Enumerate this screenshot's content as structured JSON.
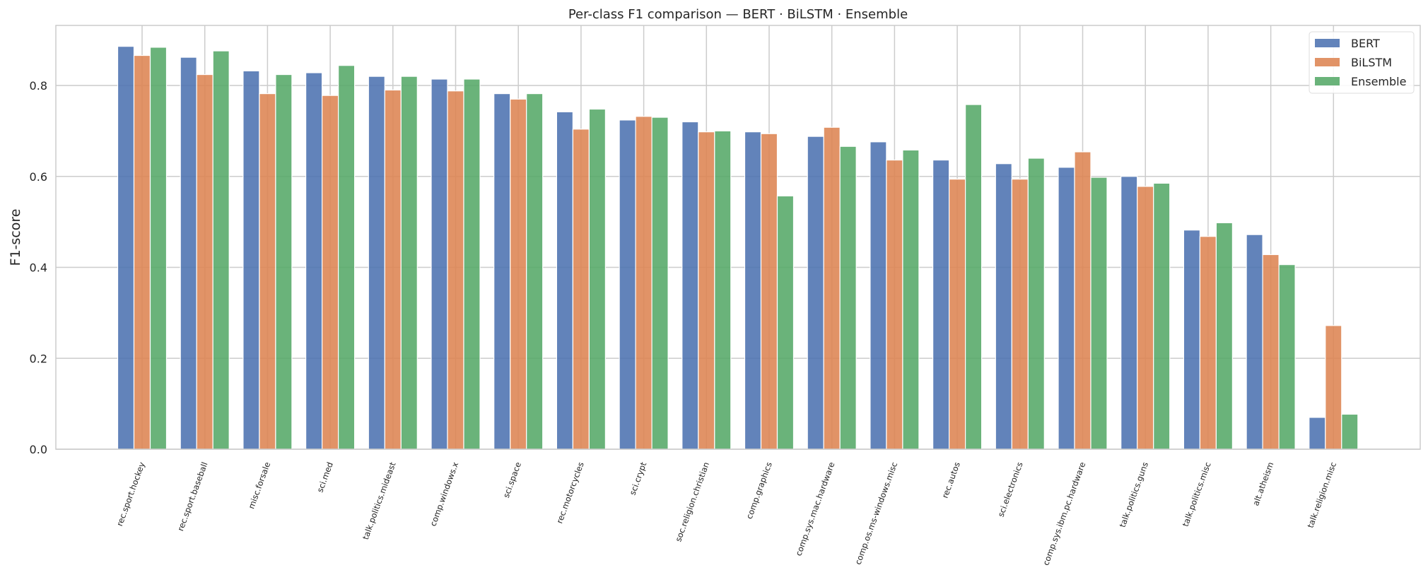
{
  "chart_data": {
    "type": "bar",
    "title": "Per-class F1 comparison — BERT · BiLSTM · Ensemble",
    "xlabel": "",
    "ylabel": "F1-score",
    "ylim": [
      0,
      0.93
    ],
    "yticks": [
      0.0,
      0.2,
      0.4,
      0.6,
      0.8
    ],
    "grid": true,
    "legend_position": "top-right",
    "categories": [
      "rec.sport.hockey",
      "rec.sport.baseball",
      "misc.forsale",
      "sci.med",
      "talk.politics.mideast",
      "comp.windows.x",
      "sci.space",
      "rec.motorcycles",
      "sci.crypt",
      "soc.religion.christian",
      "comp.graphics",
      "comp.sys.mac.hardware",
      "comp.os.ms-windows.misc",
      "rec.autos",
      "sci.electronics",
      "comp.sys.ibm.pc.hardware",
      "talk.politics.guns",
      "talk.politics.misc",
      "alt.atheism",
      "talk.religion.misc"
    ],
    "series": [
      {
        "name": "BERT",
        "color": "#4c72b0",
        "values": [
          0.886,
          0.862,
          0.832,
          0.828,
          0.82,
          0.814,
          0.782,
          0.742,
          0.724,
          0.72,
          0.698,
          0.688,
          0.676,
          0.636,
          0.628,
          0.62,
          0.6,
          0.482,
          0.472,
          0.07
        ]
      },
      {
        "name": "BiLSTM",
        "color": "#dd8452",
        "values": [
          0.866,
          0.824,
          0.782,
          0.778,
          0.79,
          0.788,
          0.77,
          0.704,
          0.732,
          0.698,
          0.694,
          0.708,
          0.636,
          0.594,
          0.594,
          0.654,
          0.578,
          0.468,
          0.428,
          0.272
        ]
      },
      {
        "name": "Ensemble",
        "color": "#55a868",
        "values": [
          0.884,
          0.876,
          0.824,
          0.844,
          0.82,
          0.814,
          0.782,
          0.748,
          0.73,
          0.7,
          0.557,
          0.666,
          0.658,
          0.758,
          0.64,
          0.598,
          0.585,
          0.498,
          0.406,
          0.077
        ]
      }
    ]
  }
}
